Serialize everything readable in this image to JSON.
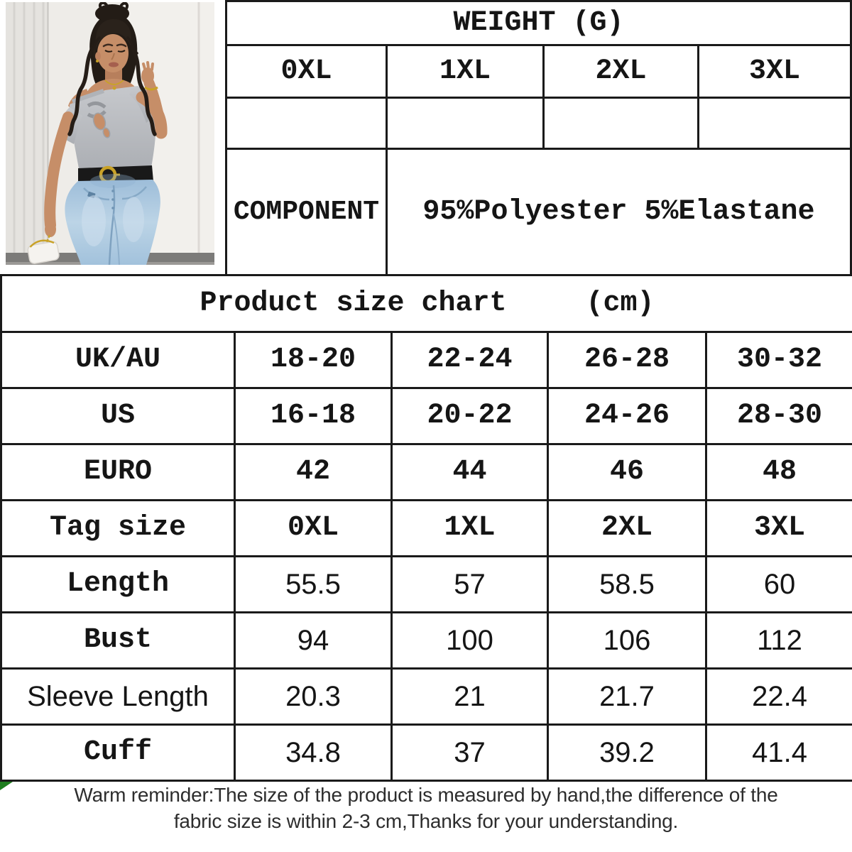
{
  "weight_table": {
    "title": "WEIGHT (G)",
    "sizes": [
      "0XL",
      "1XL",
      "2XL",
      "3XL"
    ],
    "weights": [
      "",
      "",
      "",
      ""
    ],
    "component_label": "COMPONENT",
    "component_value": "95%Polyester 5%Elastane"
  },
  "size_chart": {
    "title": "Product size chart",
    "unit": "(cm)",
    "rows": [
      {
        "label": "UK/AU",
        "label_style": "mono",
        "value_style": "mono",
        "values": [
          "18-20",
          "22-24",
          "26-28",
          "30-32"
        ]
      },
      {
        "label": "US",
        "label_style": "mono",
        "value_style": "mono",
        "values": [
          "16-18",
          "20-22",
          "24-26",
          "28-30"
        ]
      },
      {
        "label": "EURO",
        "label_style": "mono",
        "value_style": "mono",
        "values": [
          "42",
          "44",
          "46",
          "48"
        ]
      },
      {
        "label": "Tag size",
        "label_style": "mono",
        "value_style": "mono",
        "values": [
          "0XL",
          "1XL",
          "2XL",
          "3XL"
        ]
      },
      {
        "label": "Length",
        "label_style": "mono",
        "value_style": "sans",
        "values": [
          "55.5",
          "57",
          "58.5",
          "60"
        ]
      },
      {
        "label": "Bust",
        "label_style": "mono",
        "value_style": "sans",
        "values": [
          "94",
          "100",
          "106",
          "112"
        ]
      },
      {
        "label": "Sleeve Length",
        "label_style": "sans",
        "value_style": "sans",
        "values": [
          "20.3",
          "21",
          "21.7",
          "22.4"
        ]
      },
      {
        "label": "Cuff",
        "label_style": "mono",
        "value_style": "sans",
        "values": [
          "34.8",
          "37",
          "39.2",
          "41.4"
        ]
      }
    ]
  },
  "footer": {
    "line1": "Warm reminder:The size of the product is measured by hand,the difference of the",
    "line2": "fabric size is within 2-3 cm,Thanks for your understanding."
  },
  "photo": {
    "description": "Model wearing grey asymmetric cold-shoulder twist-front top and light-wash jeans with black belt"
  },
  "colors": {
    "border": "#1a1a1a",
    "text": "#151515",
    "footer_text": "#2d2d2d",
    "accent_green": "#1e7d1e"
  }
}
